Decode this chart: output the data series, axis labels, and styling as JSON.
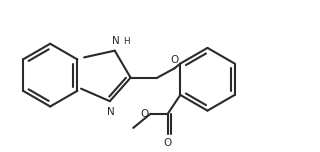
{
  "bg_color": "#ffffff",
  "line_color": "#2a2a2a",
  "line_width": 1.5,
  "font_size": 7.5,
  "figsize": [
    3.2,
    1.52
  ],
  "dpi": 100,
  "xlim": [
    0.0,
    10.0
  ],
  "ylim": [
    0.0,
    4.75
  ]
}
